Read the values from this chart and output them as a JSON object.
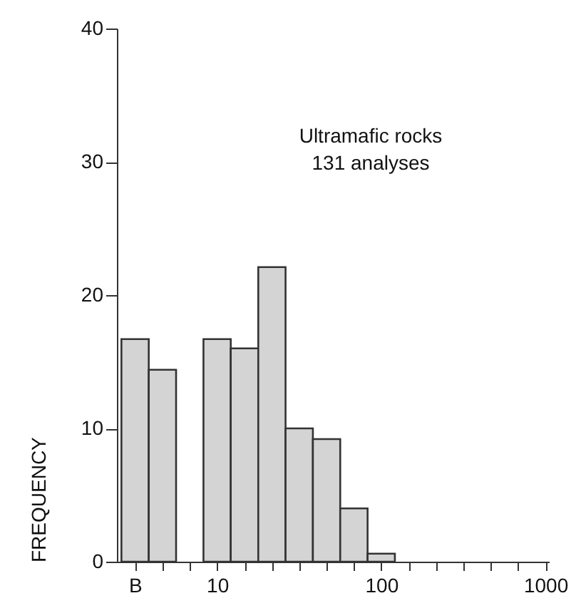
{
  "chart_data": {
    "type": "histogram",
    "ylabel": "FREQUENCY",
    "annotations": [
      "Ultramafic rocks",
      "131 analyses"
    ],
    "bins": [
      2.61,
      3.83,
      5.62,
      8.25,
      12.1,
      17.8,
      26.1,
      38.3,
      56.2,
      82.5,
      121
    ],
    "values": [
      16.7,
      14.4,
      0,
      16.7,
      16.0,
      22.1,
      10.0,
      9.2,
      4.0,
      0.6
    ],
    "color": "#d4d4d4",
    "log": "x",
    "xlim": [
      2.45,
      1050
    ],
    "xticks": [
      {
        "value": 3.16,
        "label": "B"
      },
      {
        "value": 4.64,
        "label": null
      },
      {
        "value": 6.81,
        "label": null
      },
      10,
      {
        "value": 14.7,
        "label": null
      },
      {
        "value": 21.5,
        "label": null
      },
      {
        "value": 31.6,
        "label": null
      },
      {
        "value": 46.4,
        "label": null
      },
      {
        "value": 68.1,
        "label": null
      },
      100,
      {
        "value": 147,
        "label": null
      },
      {
        "value": 215,
        "label": null
      },
      {
        "value": 316,
        "label": null
      },
      {
        "value": 464,
        "label": null
      },
      {
        "value": 681,
        "label": null
      },
      1000
    ],
    "ylim": [
      0,
      40
    ],
    "yticks": [
      0,
      10,
      20,
      30,
      40
    ]
  }
}
